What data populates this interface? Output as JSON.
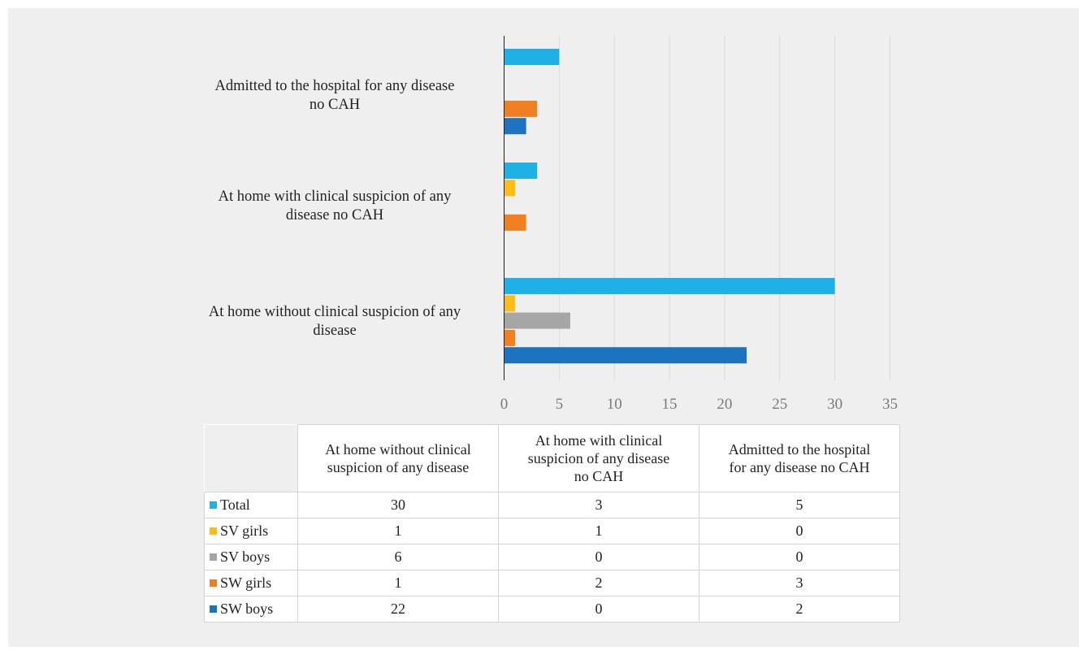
{
  "chart_data": {
    "type": "bar",
    "orientation": "horizontal",
    "categories": [
      "At home without clinical suspicion of any disease",
      "At home with clinical suspicion of any disease no CAH",
      "Admitted to the hospital for any disease no CAH"
    ],
    "category_display": [
      [
        "At home without clinical suspicion of any",
        "disease"
      ],
      [
        "At home with clinical suspicion of any",
        "disease no CAH"
      ],
      [
        "Admitted to the hospital for any disease",
        "no CAH"
      ]
    ],
    "table_headers": [
      [
        "At home without clinical",
        "suspicion of any disease"
      ],
      [
        "At home with clinical",
        "suspicion of any disease",
        "no CAH"
      ],
      [
        "Admitted to the hospital",
        "for any disease no CAH"
      ]
    ],
    "series": [
      {
        "name": "Total",
        "color": "#1fb1e6",
        "values": [
          30,
          3,
          5
        ]
      },
      {
        "name": "SV girls",
        "color": "#fbbd16",
        "values": [
          1,
          1,
          0
        ]
      },
      {
        "name": "SV boys",
        "color": "#a6a6a6",
        "values": [
          6,
          0,
          0
        ]
      },
      {
        "name": "SW girls",
        "color": "#f07f22",
        "values": [
          1,
          2,
          3
        ]
      },
      {
        "name": "SW boys",
        "color": "#1d73bf",
        "values": [
          22,
          0,
          2
        ]
      }
    ],
    "x_ticks": [
      0,
      5,
      10,
      15,
      20,
      25,
      30,
      35
    ],
    "xlim": [
      0,
      35
    ],
    "grid": true,
    "legend": "data table below chart",
    "title": "",
    "xlabel": "",
    "ylabel": ""
  }
}
